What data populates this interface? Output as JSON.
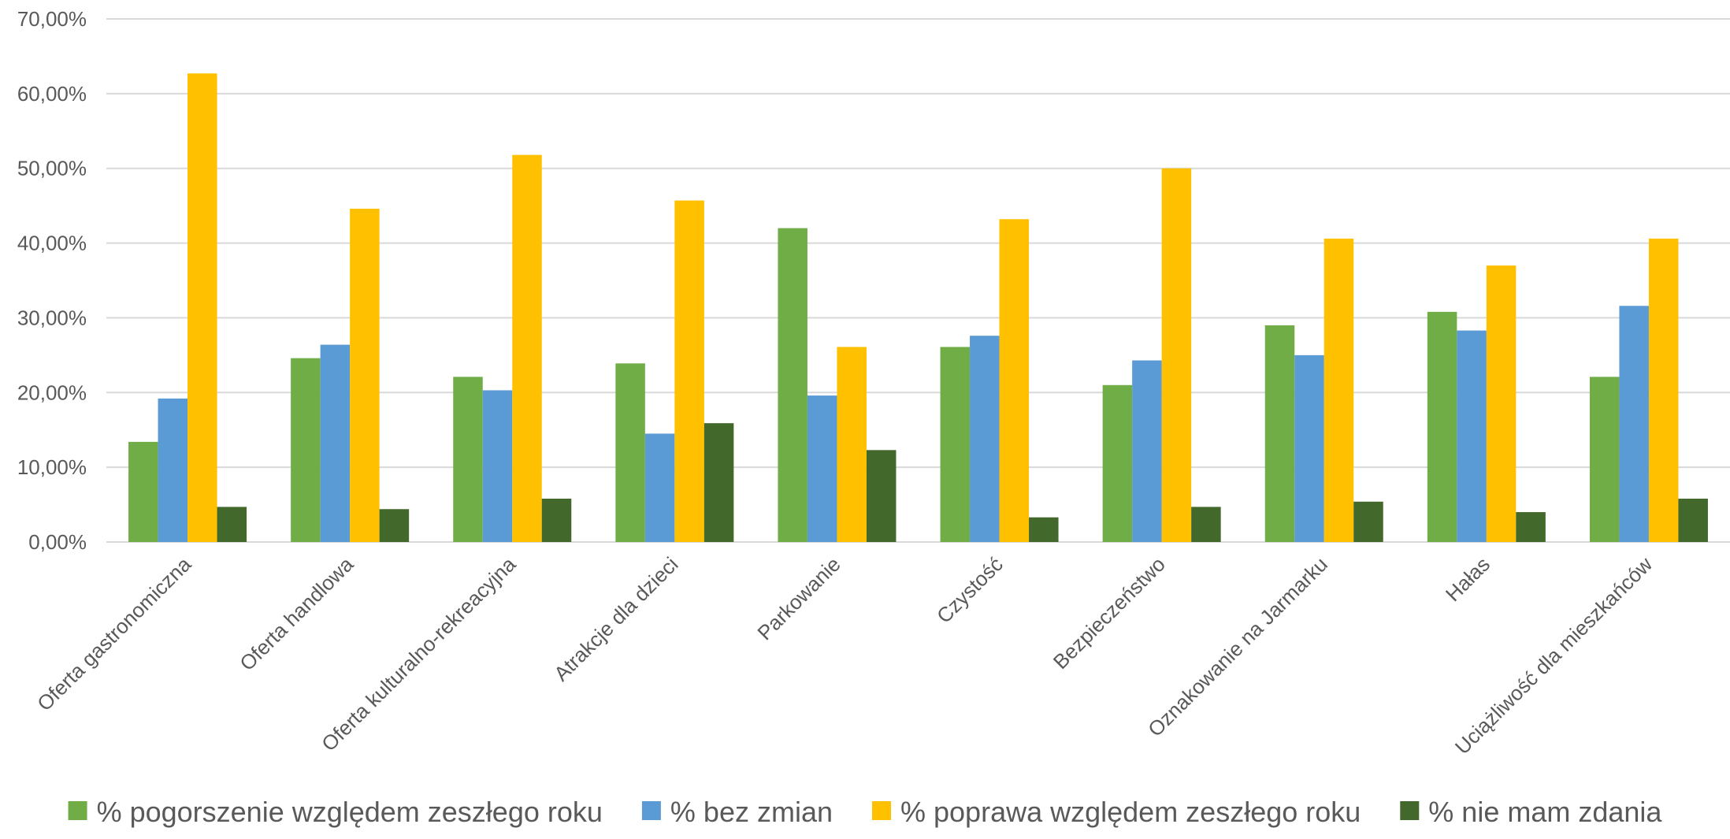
{
  "chart_data": {
    "type": "bar",
    "title": "",
    "xlabel": "",
    "ylabel": "",
    "ylim": [
      0,
      70
    ],
    "y_ticks": [
      0,
      10,
      20,
      30,
      40,
      50,
      60,
      70
    ],
    "y_tick_labels": [
      "0,00%",
      "10,00%",
      "20,00%",
      "30,00%",
      "40,00%",
      "50,00%",
      "60,00%",
      "70,00%"
    ],
    "grid": true,
    "legend_position": "bottom",
    "categories": [
      "Oferta gastronomiczna",
      "Oferta handlowa",
      "Oferta kulturalno-rekreacyjna",
      "Atrakcje dla dzieci",
      "Parkowanie",
      "Czystość",
      "Bezpieczeństwo",
      "Oznakowanie na Jarmarku",
      "Hałas",
      "Uciążliwość dla mieszkańców"
    ],
    "series": [
      {
        "name": "% pogorszenie względem zeszłego roku",
        "color": "#70ad47",
        "values": [
          13.4,
          24.6,
          22.1,
          23.9,
          42.0,
          26.1,
          21.0,
          29.0,
          30.8,
          22.1
        ]
      },
      {
        "name": "% bez zmian",
        "color": "#5b9bd5",
        "values": [
          19.2,
          26.4,
          20.3,
          14.5,
          19.6,
          27.6,
          24.3,
          25.0,
          28.3,
          31.6
        ]
      },
      {
        "name": "% poprawa względem zeszłego roku",
        "color": "#ffc000",
        "values": [
          62.7,
          44.6,
          51.8,
          45.7,
          26.1,
          43.2,
          50.0,
          40.6,
          37.0,
          40.6
        ]
      },
      {
        "name": "% nie mam zdania",
        "color": "#43682b",
        "values": [
          4.7,
          4.4,
          5.8,
          15.9,
          12.3,
          3.3,
          4.7,
          5.4,
          4.0,
          5.8
        ]
      }
    ]
  }
}
